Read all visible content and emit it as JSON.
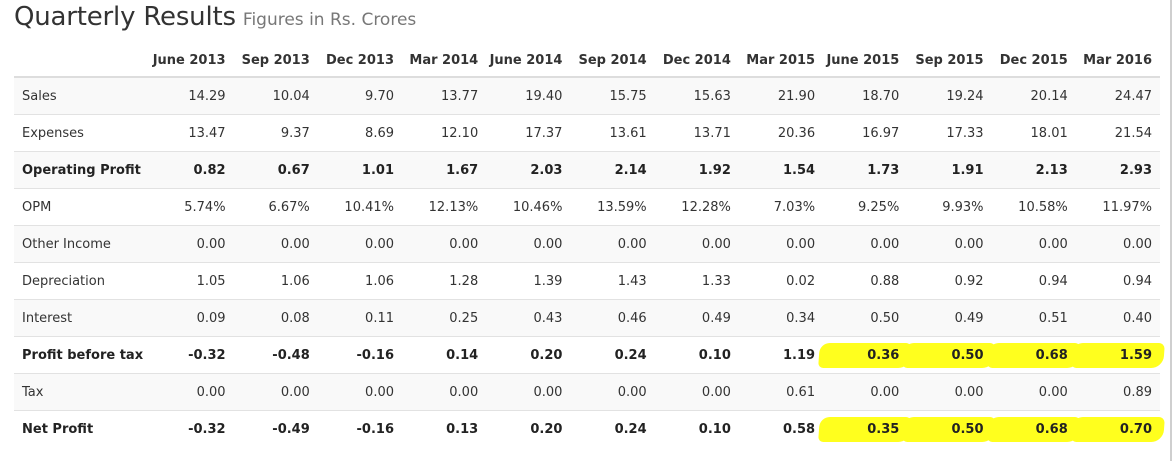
{
  "heading": {
    "title": "Quarterly Results",
    "subtitle": "Figures in Rs. Crores"
  },
  "columns": [
    "June 2013",
    "Sep 2013",
    "Dec 2013",
    "Mar 2014",
    "June 2014",
    "Sep 2014",
    "Dec 2014",
    "Mar 2015",
    "June 2015",
    "Sep 2015",
    "Dec 2015",
    "Mar 2016"
  ],
  "rows": [
    {
      "label": "Sales",
      "bold": false,
      "values": [
        "14.29",
        "10.04",
        "9.70",
        "13.77",
        "19.40",
        "15.75",
        "15.63",
        "21.90",
        "18.70",
        "19.24",
        "20.14",
        "24.47"
      ]
    },
    {
      "label": "Expenses",
      "bold": false,
      "values": [
        "13.47",
        "9.37",
        "8.69",
        "12.10",
        "17.37",
        "13.61",
        "13.71",
        "20.36",
        "16.97",
        "17.33",
        "18.01",
        "21.54"
      ]
    },
    {
      "label": "Operating Profit",
      "bold": true,
      "values": [
        "0.82",
        "0.67",
        "1.01",
        "1.67",
        "2.03",
        "2.14",
        "1.92",
        "1.54",
        "1.73",
        "1.91",
        "2.13",
        "2.93"
      ]
    },
    {
      "label": "OPM",
      "bold": false,
      "values": [
        "5.74%",
        "6.67%",
        "10.41%",
        "12.13%",
        "10.46%",
        "13.59%",
        "12.28%",
        "7.03%",
        "9.25%",
        "9.93%",
        "10.58%",
        "11.97%"
      ]
    },
    {
      "label": "Other Income",
      "bold": false,
      "values": [
        "0.00",
        "0.00",
        "0.00",
        "0.00",
        "0.00",
        "0.00",
        "0.00",
        "0.00",
        "0.00",
        "0.00",
        "0.00",
        "0.00"
      ]
    },
    {
      "label": "Depreciation",
      "bold": false,
      "values": [
        "1.05",
        "1.06",
        "1.06",
        "1.28",
        "1.39",
        "1.43",
        "1.33",
        "0.02",
        "0.88",
        "0.92",
        "0.94",
        "0.94"
      ]
    },
    {
      "label": "Interest",
      "bold": false,
      "values": [
        "0.09",
        "0.08",
        "0.11",
        "0.25",
        "0.43",
        "0.46",
        "0.49",
        "0.34",
        "0.50",
        "0.49",
        "0.51",
        "0.40"
      ]
    },
    {
      "label": "Profit before tax",
      "bold": true,
      "values": [
        "-0.32",
        "-0.48",
        "-0.16",
        "0.14",
        "0.20",
        "0.24",
        "0.10",
        "1.19",
        "0.36",
        "0.50",
        "0.68",
        "1.59"
      ],
      "highlighted": [
        8,
        9,
        10,
        11
      ]
    },
    {
      "label": "Tax",
      "bold": false,
      "values": [
        "0.00",
        "0.00",
        "0.00",
        "0.00",
        "0.00",
        "0.00",
        "0.00",
        "0.61",
        "0.00",
        "0.00",
        "0.00",
        "0.89"
      ]
    },
    {
      "label": "Net Profit",
      "bold": true,
      "values": [
        "-0.32",
        "-0.49",
        "-0.16",
        "0.13",
        "0.20",
        "0.24",
        "0.10",
        "0.58",
        "0.35",
        "0.50",
        "0.68",
        "0.70"
      ],
      "highlighted": [
        8,
        9,
        10,
        11
      ]
    }
  ],
  "colors": {
    "highlight": "#ffff1e",
    "stripe": "#f9f9f9",
    "text": "#333333",
    "subtitle": "#777777"
  }
}
